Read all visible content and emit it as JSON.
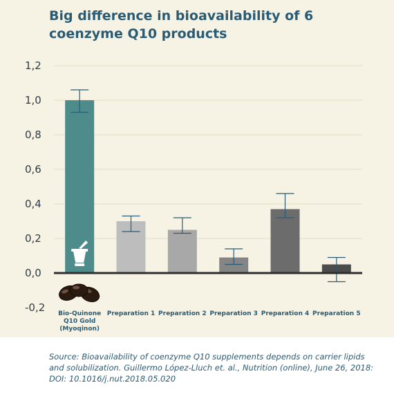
{
  "title_lines": [
    "Big difference in bioavailability of 6",
    "coenzyme Q10 products"
  ],
  "chart_data": {
    "type": "bar",
    "categories": [
      [
        "Bio-Quinone",
        "Q10 Gold",
        "(Myoqinon)"
      ],
      [
        "Preparation 1"
      ],
      [
        "Preparation 2"
      ],
      [
        "Preparation 3"
      ],
      [
        "Preparation 4"
      ],
      [
        "Preparation 5"
      ]
    ],
    "values": [
      1.0,
      0.3,
      0.25,
      0.09,
      0.37,
      0.05
    ],
    "error_low": [
      0.93,
      0.24,
      0.23,
      0.05,
      0.32,
      -0.05
    ],
    "error_high": [
      1.06,
      0.33,
      0.32,
      0.14,
      0.46,
      0.09
    ],
    "ylim": [
      -0.2,
      1.2
    ],
    "yticks": [
      -0.2,
      0.0,
      0.2,
      0.4,
      0.6,
      0.8,
      1.0,
      1.2
    ],
    "ytick_labels": [
      "-0,2",
      "0,0",
      "0,2",
      "0,4",
      "0,6",
      "0,8",
      "1,0",
      "1,2"
    ],
    "grid": true,
    "bar_colors": [
      "#4d8c8b",
      "#bdbdbd",
      "#a8a8a8",
      "#858585",
      "#6c6c6c",
      "#4c4c4c"
    ],
    "errorbar_color": "#2a5b74",
    "icons": [
      "mortar-and-pestle-icon",
      "softgel-capsules-icon"
    ]
  },
  "source": "Source: Bioavailability of coenzyme Q10 supplements depends on carrier lipids and solubilization. Guillermo López-Lluch et. al., Nutrition (online), June 26, 2018: DOI: 10.1016/j.nut.2018.05.020"
}
